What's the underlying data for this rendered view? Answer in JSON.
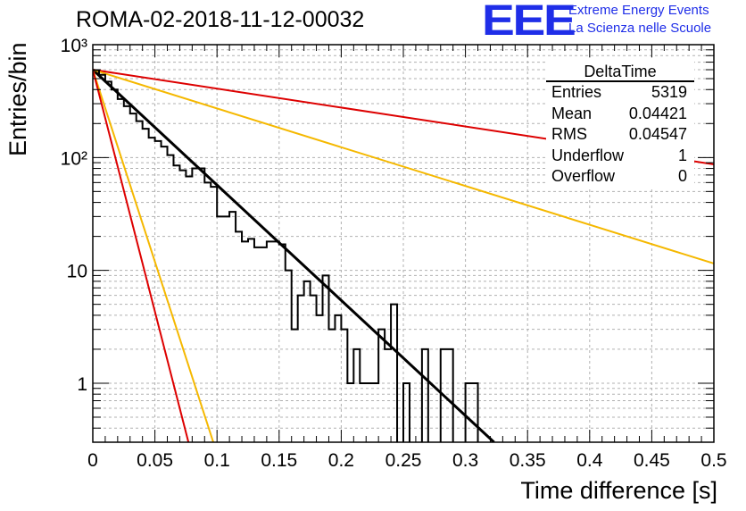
{
  "header": {
    "title": "ROMA-02-2018-11-12-00032",
    "logo_text": "EEE",
    "logo_line1": "Extreme Energy Events",
    "logo_line2": "La Scienza nelle Scuole"
  },
  "stats_box": {
    "name": "DeltaTime",
    "rows": [
      {
        "label": "Entries",
        "value": "5319"
      },
      {
        "label": "Mean",
        "value": "0.04421"
      },
      {
        "label": "RMS",
        "value": "0.04547"
      },
      {
        "label": "Underflow",
        "value": "1"
      },
      {
        "label": "Overflow",
        "value": "0"
      }
    ]
  },
  "colors": {
    "histogram": "#000000",
    "fit_line": "#000000",
    "red_lines": "#dd0000",
    "yellow_lines": "#f5b800",
    "grid": "#b0b0b0",
    "logo": "#1f2ee8"
  },
  "chart_data": {
    "type": "line",
    "title": "ROMA-02-2018-11-12-00032",
    "xlabel": "Time difference [s]",
    "ylabel": "Entries/bin",
    "xlim": [
      0,
      0.5
    ],
    "ylim": [
      0.3,
      1000
    ],
    "yscale": "log",
    "grid": true,
    "x_ticks": [
      "0",
      "0.05",
      "0.1",
      "0.15",
      "0.2",
      "0.25",
      "0.3",
      "0.35",
      "0.4",
      "0.45",
      "0.5"
    ],
    "y_ticks": [
      "1",
      "10",
      "10²",
      "10³"
    ],
    "histogram": {
      "bin_width": 0.005,
      "bin_edges_start": 0,
      "counts": [
        595,
        540,
        470,
        400,
        330,
        285,
        245,
        210,
        180,
        150,
        140,
        125,
        105,
        85,
        77,
        68,
        80,
        80,
        60,
        55,
        30,
        30,
        33,
        22,
        18,
        19,
        16,
        16,
        18,
        18,
        17,
        10,
        3,
        6,
        8,
        6,
        4,
        9,
        3,
        4,
        3,
        1,
        2,
        1,
        1,
        1,
        3,
        2,
        5,
        0,
        1,
        0,
        0,
        2,
        0,
        0,
        2,
        2,
        0,
        0,
        1,
        1,
        0,
        0,
        0,
        0,
        0,
        0,
        0,
        0,
        0,
        0,
        0,
        0,
        0,
        0,
        0,
        0,
        0,
        0
      ]
    },
    "series": [
      {
        "color": "black",
        "x": [
          0.0,
          0.323
        ],
        "y": [
          600,
          0.3
        ]
      },
      {
        "color": "red",
        "x": [
          0.0,
          0.5
        ],
        "y": [
          600,
          87
        ]
      },
      {
        "color": "yellow",
        "x": [
          0.0,
          0.5
        ],
        "y": [
          600,
          11.5
        ]
      },
      {
        "color": "yellow",
        "x": [
          0.0,
          0.097
        ],
        "y": [
          600,
          0.3
        ]
      },
      {
        "color": "red",
        "x": [
          0.0,
          0.077
        ],
        "y": [
          600,
          0.3
        ]
      }
    ]
  }
}
